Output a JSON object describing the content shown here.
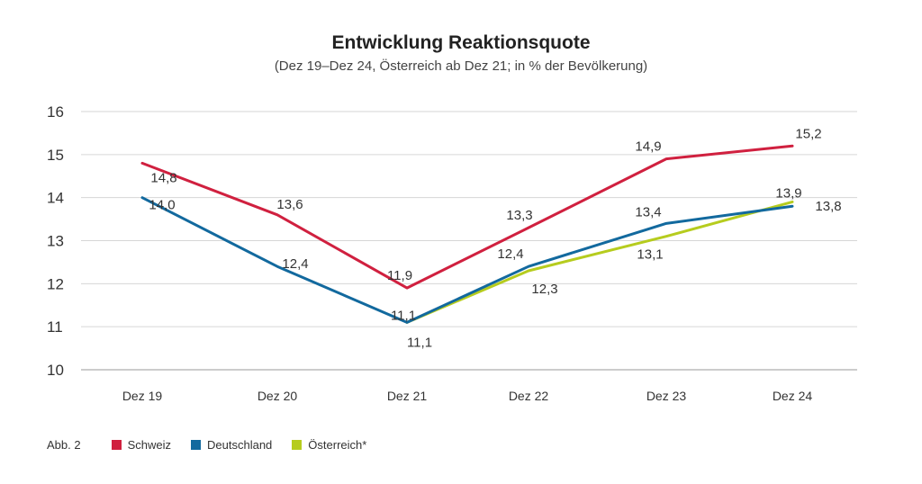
{
  "chart_data": {
    "type": "line",
    "title": "Entwicklung Reaktionsquote",
    "subtitle": "(Dez 19–Dez 24, Österreich ab Dez 21; in % der Bevölkerung)",
    "categories": [
      "Dez 19",
      "Dez 20",
      "Dez 21",
      "Dez 22",
      "Dez 23",
      "Dez 24"
    ],
    "ylim": [
      10,
      16
    ],
    "yticks": [
      10,
      11,
      12,
      13,
      14,
      15,
      16
    ],
    "grid": true,
    "legend_position": "bottom-left",
    "series": [
      {
        "name": "Schweiz",
        "color": "#d0203f",
        "values": [
          14.8,
          13.6,
          11.9,
          13.3,
          14.9,
          15.2
        ],
        "labels": [
          "14,8",
          "13,6",
          "11,9",
          "13,3",
          "14,9",
          "15,2"
        ]
      },
      {
        "name": "Deutschland",
        "color": "#12699e",
        "values": [
          14.0,
          12.4,
          11.1,
          12.4,
          13.4,
          13.8
        ],
        "labels": [
          "14,0",
          "12,4",
          "11,1",
          "12,4",
          "13,4",
          "13,8"
        ]
      },
      {
        "name": "Österreich*",
        "color": "#b6cc1e",
        "values": [
          null,
          null,
          11.1,
          12.3,
          13.1,
          13.9
        ],
        "labels": [
          null,
          null,
          "11,1",
          "12,3",
          "13,1",
          "13,9"
        ]
      }
    ]
  },
  "legend": {
    "figure_label": "Abb. 2",
    "items": [
      {
        "label": "Schweiz",
        "color": "#d0203f"
      },
      {
        "label": "Deutschland",
        "color": "#12699e"
      },
      {
        "label": "Österreich*",
        "color": "#b6cc1e"
      }
    ]
  }
}
